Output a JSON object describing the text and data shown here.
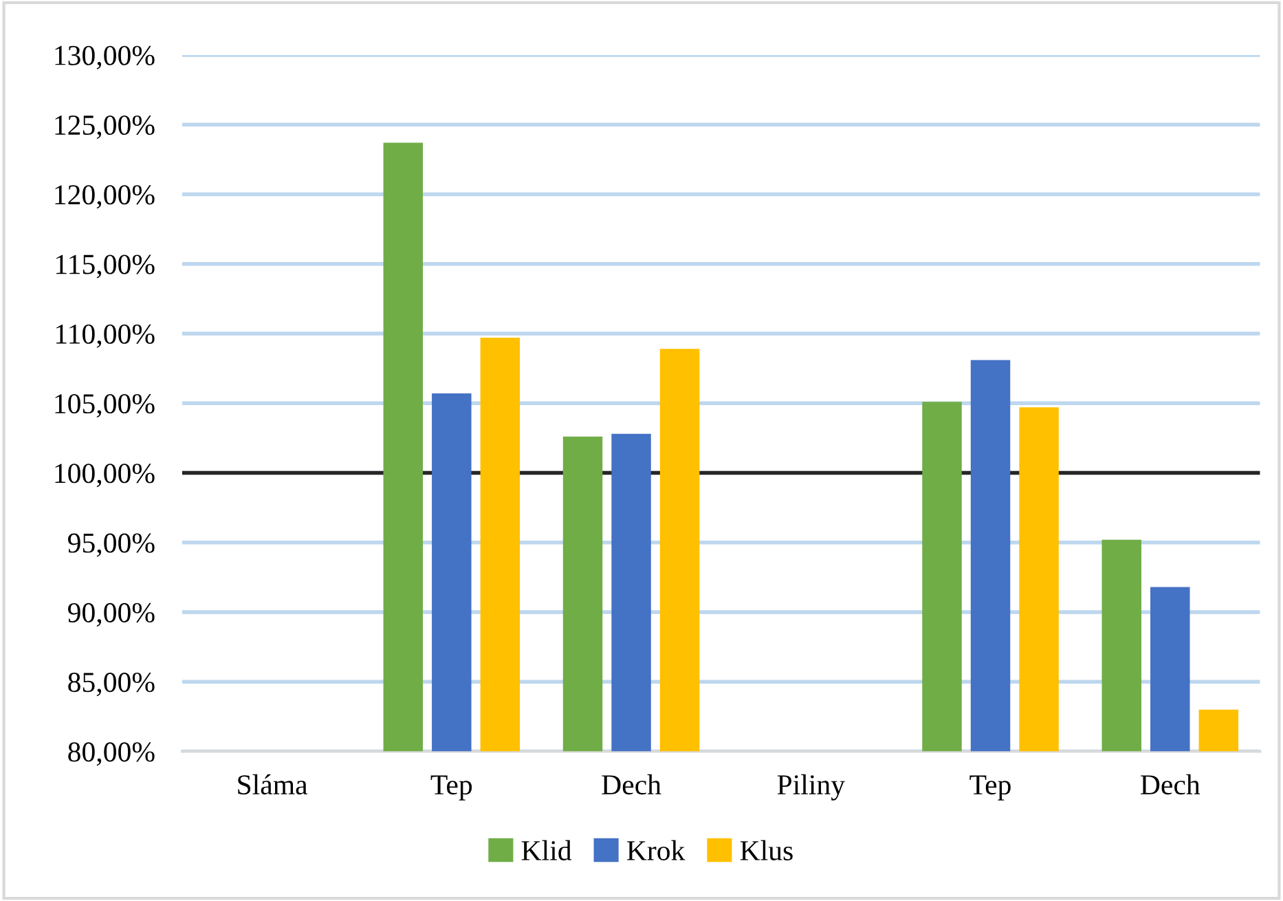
{
  "chart_data": {
    "type": "bar",
    "categories": [
      "Sláma",
      "Tep",
      "Dech",
      "Piliny",
      "Tep",
      "Dech"
    ],
    "series": [
      {
        "name": "Klid",
        "color": "#70ad47",
        "values": [
          null,
          123.7,
          102.6,
          null,
          105.1,
          95.2
        ]
      },
      {
        "name": "Krok",
        "color": "#4472c4",
        "values": [
          null,
          105.7,
          102.8,
          null,
          108.1,
          91.8
        ]
      },
      {
        "name": "Klus",
        "color": "#ffc000",
        "values": [
          null,
          109.7,
          108.9,
          null,
          104.7,
          83.0
        ]
      }
    ],
    "ylim": [
      80,
      130
    ],
    "yticks": [
      {
        "value": 80,
        "label": "80,00%"
      },
      {
        "value": 85,
        "label": "85,00%"
      },
      {
        "value": 90,
        "label": "90,00%"
      },
      {
        "value": 95,
        "label": "95,00%"
      },
      {
        "value": 100,
        "label": "100,00%"
      },
      {
        "value": 105,
        "label": "105,00%"
      },
      {
        "value": 110,
        "label": "110,00%"
      },
      {
        "value": 115,
        "label": "115,00%"
      },
      {
        "value": 120,
        "label": "120,00%"
      },
      {
        "value": 125,
        "label": "125,00%"
      },
      {
        "value": 130,
        "label": "130,00%"
      }
    ],
    "ref_lines": [
      {
        "axis": "y",
        "value": 100,
        "color": "#262626"
      }
    ],
    "grid": "y",
    "legend": "bottom"
  }
}
